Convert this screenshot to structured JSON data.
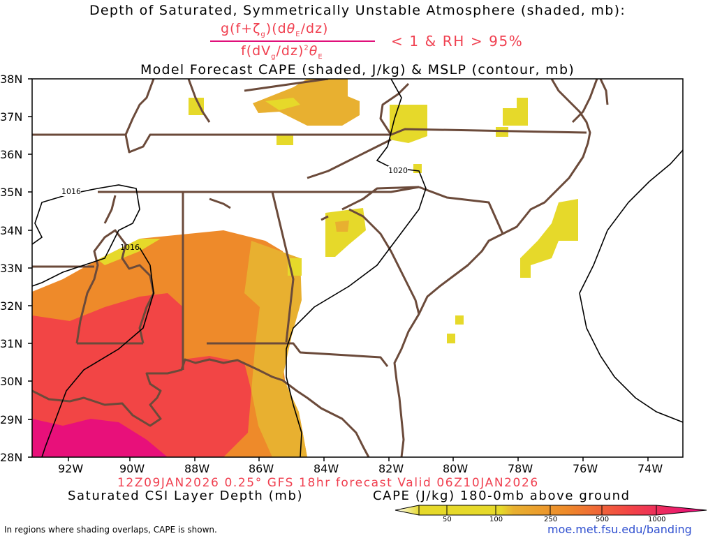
{
  "titles": {
    "line1": "Depth of Saturated, Symmetrically Unstable Atmosphere (shaded, mb):",
    "fraction_numerator": [
      "g(f+ζ",
      "g",
      ")(d",
      "θ",
      "E",
      "/dz)"
    ],
    "fraction_denominator": [
      "f(dV",
      "g",
      "/dz)",
      "2",
      "θ",
      "E"
    ],
    "condition": "< 1 & RH > 95%",
    "line3": "Model Forecast CAPE (shaded, J/kg) & MSLP (contour, mb)"
  },
  "map": {
    "lat_labels": [
      "38N",
      "37N",
      "36N",
      "35N",
      "34N",
      "33N",
      "32N",
      "31N",
      "30N",
      "29N",
      "28N"
    ],
    "lon_labels": [
      "92W",
      "90W",
      "88W",
      "86W",
      "84W",
      "82W",
      "80W",
      "78W",
      "76W",
      "74W"
    ],
    "isobar_labels": [
      "1016",
      "1016",
      "1020"
    ],
    "colors": {
      "border": "#6b4a3a",
      "isobar": "#000000",
      "cape_50": "#e6d92a",
      "cape_100": "#e8b030",
      "cape_250": "#ee8a2a",
      "cape_500": "#f24545",
      "cape_1000": "#e8107a"
    }
  },
  "footer": {
    "valid": "12Z09JAN2026 0.25° GFS 18hr forecast Valid 06Z10JAN2026",
    "csi_label": "Saturated CSI Layer Depth (mb)",
    "cape_label": "CAPE (J/kg) 180-0mb above ground",
    "colorbar_ticks": [
      "50",
      "100",
      "250",
      "500",
      "1000"
    ],
    "note": "In regions where shading overlaps, CAPE is shown.",
    "url": "moe.met.fsu.edu/banding"
  }
}
